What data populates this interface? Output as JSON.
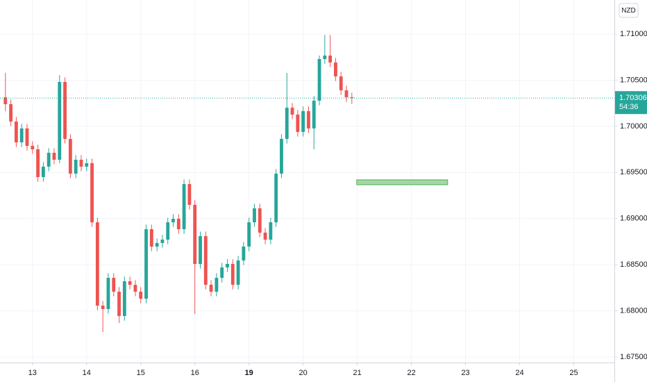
{
  "chart_data": {
    "type": "candlestick",
    "currency": "NZD",
    "x": [
      0,
      1,
      2,
      3,
      4,
      5,
      6,
      7,
      8,
      9,
      10,
      11,
      12,
      13,
      14,
      15,
      16,
      17,
      18,
      19,
      20,
      21,
      22,
      23,
      24,
      25,
      26,
      27,
      28,
      29,
      30,
      31,
      32,
      33,
      34,
      35,
      36,
      37,
      38,
      39,
      40,
      41,
      42,
      43,
      44,
      45,
      46,
      47,
      48,
      49,
      50,
      51,
      52,
      53,
      54,
      55,
      56,
      57,
      58,
      59,
      60,
      61,
      62,
      63,
      64
    ],
    "open": [
      1.70315,
      1.7024,
      1.70052,
      1.69826,
      1.69977,
      1.69788,
      1.69751,
      1.6945,
      1.69563,
      1.69713,
      1.69638,
      1.70481,
      1.69864,
      1.69487,
      1.69638,
      1.69563,
      1.696,
      1.6896,
      1.68057,
      1.6802,
      1.68358,
      1.68208,
      1.67944,
      1.68321,
      1.68283,
      1.68208,
      1.68132,
      1.68885,
      1.68697,
      1.68735,
      1.68772,
      1.6896,
      1.68998,
      1.68885,
      1.69374,
      1.69149,
      1.68509,
      1.6881,
      1.68283,
      1.68208,
      1.68358,
      1.68471,
      1.68509,
      1.68283,
      1.68546,
      1.68697,
      1.6896,
      1.69111,
      1.68848,
      1.68772,
      1.6896,
      1.69487,
      1.69864,
      1.70202,
      1.70127,
      1.69939,
      1.70165,
      1.69977,
      1.70278,
      1.70729,
      1.70767,
      1.70692,
      1.70541,
      1.7039,
      1.70315
    ],
    "high": [
      1.70579,
      1.7029,
      1.70102,
      1.70027,
      1.70027,
      1.69838,
      1.69801,
      1.69613,
      1.69763,
      1.69763,
      1.70556,
      1.70531,
      1.69914,
      1.69688,
      1.69688,
      1.6965,
      1.6965,
      1.6901,
      1.68107,
      1.68408,
      1.68408,
      1.68258,
      1.68371,
      1.68371,
      1.68333,
      1.68258,
      1.68935,
      1.68935,
      1.68785,
      1.68822,
      1.6901,
      1.69048,
      1.69048,
      1.69424,
      1.69424,
      1.69199,
      1.6886,
      1.6886,
      1.68333,
      1.68408,
      1.68521,
      1.68559,
      1.68559,
      1.68596,
      1.68747,
      1.6901,
      1.69161,
      1.69161,
      1.68898,
      1.6901,
      1.69537,
      1.69914,
      1.70579,
      1.70252,
      1.70177,
      1.70215,
      1.70215,
      1.70328,
      1.70767,
      1.7099,
      1.7099,
      1.70742,
      1.70591,
      1.7044,
      1.70365
    ],
    "low": [
      1.70165,
      1.70002,
      1.69776,
      1.69776,
      1.69738,
      1.69701,
      1.694,
      1.694,
      1.69513,
      1.69588,
      1.696,
      1.69814,
      1.69437,
      1.69437,
      1.69513,
      1.69513,
      1.6891,
      1.68007,
      1.67771,
      1.6797,
      1.68158,
      1.67869,
      1.67894,
      1.68233,
      1.68158,
      1.68082,
      1.68082,
      1.68647,
      1.68647,
      1.68685,
      1.68722,
      1.6891,
      1.68835,
      1.68835,
      1.69099,
      1.67967,
      1.68459,
      1.68233,
      1.68158,
      1.68158,
      1.68308,
      1.68421,
      1.68233,
      1.68233,
      1.68496,
      1.68647,
      1.6891,
      1.68798,
      1.68722,
      1.68722,
      1.6891,
      1.69437,
      1.69814,
      1.70077,
      1.69889,
      1.69889,
      1.69927,
      1.6975,
      1.70228,
      1.70679,
      1.70642,
      1.70491,
      1.7034,
      1.70265,
      1.70243
    ],
    "close": [
      1.7024,
      1.70052,
      1.69826,
      1.69977,
      1.69788,
      1.69751,
      1.6945,
      1.69563,
      1.69713,
      1.69638,
      1.70481,
      1.69864,
      1.69487,
      1.69638,
      1.69563,
      1.696,
      1.6896,
      1.68057,
      1.6802,
      1.68358,
      1.68208,
      1.67944,
      1.68321,
      1.68283,
      1.68208,
      1.68132,
      1.68885,
      1.68697,
      1.68735,
      1.68772,
      1.6896,
      1.68998,
      1.68885,
      1.69374,
      1.69149,
      1.68509,
      1.6881,
      1.68283,
      1.68208,
      1.68358,
      1.68471,
      1.68509,
      1.68283,
      1.68546,
      1.68697,
      1.6896,
      1.69111,
      1.68848,
      1.68772,
      1.6896,
      1.69487,
      1.69864,
      1.70202,
      1.70127,
      1.69939,
      1.70165,
      1.69977,
      1.70278,
      1.70729,
      1.70767,
      1.70692,
      1.70541,
      1.7039,
      1.70315,
      1.70306
    ],
    "up_color": "#26a69a",
    "down_color": "#ef5350",
    "last_price": 1.70306,
    "countdown": "54:36",
    "zone": {
      "x": [
        64.9,
        81.7
      ],
      "y": [
        1.69367,
        1.6942
      ],
      "color": "#a5d6a7"
    },
    "xlim": [
      -1,
      112.5
    ],
    "xticks": [
      {
        "value": 5,
        "label": "13"
      },
      {
        "value": 15,
        "label": "14"
      },
      {
        "value": 25,
        "label": "15"
      },
      {
        "value": 35,
        "label": "16"
      },
      {
        "value": 45,
        "label": "19"
      },
      {
        "value": 55,
        "label": "20"
      },
      {
        "value": 65,
        "label": "21"
      },
      {
        "value": 75,
        "label": "22"
      },
      {
        "value": 85,
        "label": "23"
      },
      {
        "value": 95,
        "label": "24"
      },
      {
        "value": 105,
        "label": "25"
      }
    ],
    "ylim": [
      1.6744,
      1.71369
    ],
    "yticks": [
      {
        "value": 1.675,
        "label": "1.67500"
      },
      {
        "value": 1.68,
        "label": "1.68000"
      },
      {
        "value": 1.685,
        "label": "1.68500"
      },
      {
        "value": 1.69,
        "label": "1.69000"
      },
      {
        "value": 1.695,
        "label": "1.69500"
      },
      {
        "value": 1.7,
        "label": "1.70000"
      },
      {
        "value": 1.705,
        "label": "1.70500"
      },
      {
        "value": 1.71,
        "label": "1.71000"
      }
    ],
    "grid": true
  }
}
